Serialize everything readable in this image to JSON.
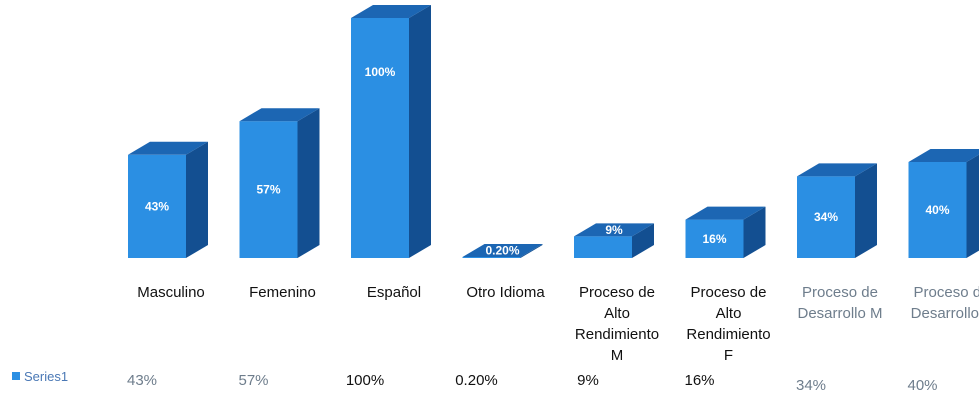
{
  "colors": {
    "bar_front": "#2b8fe3",
    "bar_top": "#1c66b3",
    "bar_side": "#134f91",
    "legend_swatch": "#2b8fe3"
  },
  "chart_data": {
    "type": "bar",
    "style": "3d-column",
    "title": "",
    "xlabel": "",
    "ylabel": "",
    "ylim": [
      0,
      100
    ],
    "grid": false,
    "legend": "data-table-left",
    "categories": [
      "Masculino",
      "Femenino",
      "Español",
      "Otro Idioma",
      "Proceso de Alto Rendimiento M",
      "Proceso de Alto Rendimiento F",
      "Proceso de Desarrollo M",
      "Proceso de Desarrollo F"
    ],
    "series": [
      {
        "name": "Series1",
        "values": [
          43,
          57,
          100,
          0.2,
          9,
          16,
          34,
          40
        ],
        "data_labels": [
          "43%",
          "57%",
          "100%",
          "0.20%",
          "9%",
          "16%",
          "34%",
          "40%"
        ]
      }
    ]
  }
}
